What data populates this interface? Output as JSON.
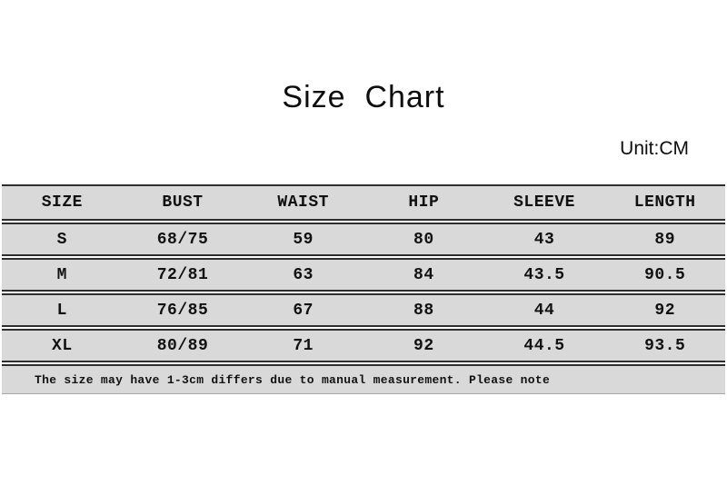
{
  "header": {
    "title": "Size  Chart",
    "unit_label": "Unit:CM"
  },
  "chart_data": {
    "type": "table",
    "title": "Size Chart",
    "unit": "CM",
    "columns": [
      "SIZE",
      "BUST",
      "WAIST",
      "HIP",
      "SLEEVE",
      "LENGTH"
    ],
    "rows": [
      [
        "S",
        "68/75",
        "59",
        "80",
        "43",
        "89"
      ],
      [
        "M",
        "72/81",
        "63",
        "84",
        "43.5",
        "90.5"
      ],
      [
        "L",
        "76/85",
        "67",
        "88",
        "44",
        "92"
      ],
      [
        "XL",
        "80/89",
        "71",
        "92",
        "44.5",
        "93.5"
      ]
    ],
    "note": "The size may have 1-3cm differs due to manual measurement. Please note"
  },
  "colors": {
    "row_background": "#d9d9d9",
    "rule_line": "#2e2e2e",
    "text": "#111111",
    "page_background": "#ffffff"
  }
}
